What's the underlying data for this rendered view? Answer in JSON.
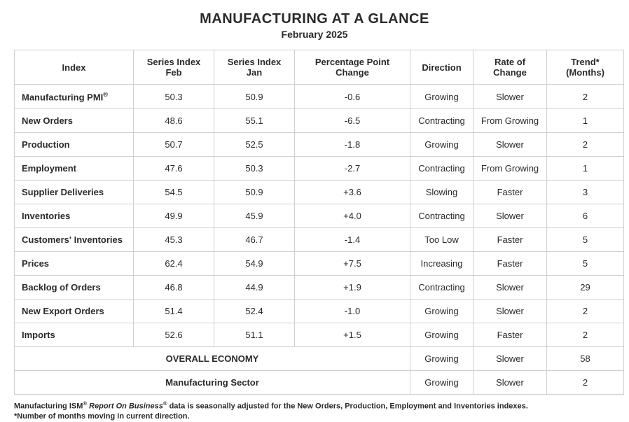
{
  "title": "MANUFACTURING AT A GLANCE",
  "subtitle": "February 2025",
  "columns": [
    "Index",
    "Series Index Feb",
    "Series Index Jan",
    "Percentage Point Change",
    "Direction",
    "Rate of Change",
    "Trend* (Months)"
  ],
  "rows": [
    {
      "index": "Manufacturing PMI",
      "sup": "®",
      "feb": "50.3",
      "jan": "50.9",
      "ppc": "-0.6",
      "dir": "Growing",
      "rate": "Slower",
      "trend": "2"
    },
    {
      "index": "New Orders",
      "sup": "",
      "feb": "48.6",
      "jan": "55.1",
      "ppc": "-6.5",
      "dir": "Contracting",
      "rate": "From Growing",
      "trend": "1"
    },
    {
      "index": "Production",
      "sup": "",
      "feb": "50.7",
      "jan": "52.5",
      "ppc": "-1.8",
      "dir": "Growing",
      "rate": "Slower",
      "trend": "2"
    },
    {
      "index": "Employment",
      "sup": "",
      "feb": "47.6",
      "jan": "50.3",
      "ppc": "-2.7",
      "dir": "Contracting",
      "rate": "From Growing",
      "trend": "1"
    },
    {
      "index": "Supplier Deliveries",
      "sup": "",
      "feb": "54.5",
      "jan": "50.9",
      "ppc": "+3.6",
      "dir": "Slowing",
      "rate": "Faster",
      "trend": "3"
    },
    {
      "index": "Inventories",
      "sup": "",
      "feb": "49.9",
      "jan": "45.9",
      "ppc": "+4.0",
      "dir": "Contracting",
      "rate": "Slower",
      "trend": "6"
    },
    {
      "index": "Customers' Inventories",
      "sup": "",
      "feb": "45.3",
      "jan": "46.7",
      "ppc": "-1.4",
      "dir": "Too Low",
      "rate": "Faster",
      "trend": "5"
    },
    {
      "index": "Prices",
      "sup": "",
      "feb": "62.4",
      "jan": "54.9",
      "ppc": "+7.5",
      "dir": "Increasing",
      "rate": "Faster",
      "trend": "5"
    },
    {
      "index": "Backlog of Orders",
      "sup": "",
      "feb": "46.8",
      "jan": "44.9",
      "ppc": "+1.9",
      "dir": "Contracting",
      "rate": "Slower",
      "trend": "29"
    },
    {
      "index": "New Export Orders",
      "sup": "",
      "feb": "51.4",
      "jan": "52.4",
      "ppc": "-1.0",
      "dir": "Growing",
      "rate": "Slower",
      "trend": "2"
    },
    {
      "index": "Imports",
      "sup": "",
      "feb": "52.6",
      "jan": "51.1",
      "ppc": "+1.5",
      "dir": "Growing",
      "rate": "Faster",
      "trend": "2"
    }
  ],
  "summary": [
    {
      "label": "OVERALL ECONOMY",
      "dir": "Growing",
      "rate": "Slower",
      "trend": "58"
    },
    {
      "label": "Manufacturing Sector",
      "dir": "Growing",
      "rate": "Slower",
      "trend": "2"
    }
  ],
  "footnote": {
    "line1_prefix": "Manufacturing ISM",
    "line1_sup1": "®",
    "line1_mid": " Report On Business",
    "line1_sup2": "®",
    "line1_suffix": " data is seasonally adjusted for the New Orders, Production, Employment and Inventories indexes.",
    "line2": "*Number of months moving in current direction."
  }
}
